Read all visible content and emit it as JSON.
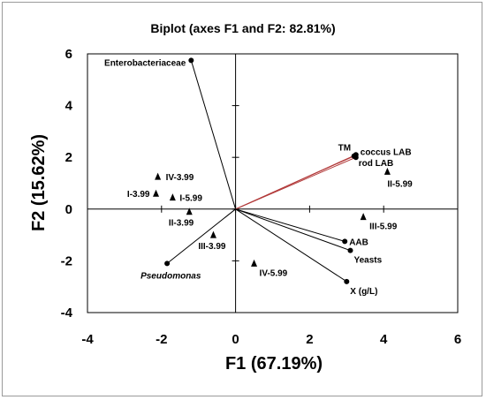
{
  "chart_data": {
    "type": "scatter",
    "title": "Biplot (axes F1 and F2: 82.81%)",
    "xlabel": "F1 (67.19%)",
    "ylabel": "F2 (15.62%)",
    "xlim": [
      -4,
      6
    ],
    "ylim": [
      -4,
      6
    ],
    "xticks": [
      "-4",
      "-2",
      "0",
      "2",
      "4",
      "6"
    ],
    "yticks": [
      "-4",
      "-2",
      "0",
      "2",
      "4",
      "6"
    ],
    "grid": false,
    "series": [
      {
        "kind": "observations",
        "marker": "triangle",
        "points": [
          {
            "label": "IV-3.99",
            "x": -2.1,
            "y": 1.25
          },
          {
            "label": "I-3.99",
            "x": -2.15,
            "y": 0.6
          },
          {
            "label": "I-5.99",
            "x": -1.7,
            "y": 0.45
          },
          {
            "label": "II-3.99",
            "x": -1.25,
            "y": -0.1
          },
          {
            "label": "III-3.99",
            "x": -0.6,
            "y": -1.0
          },
          {
            "label": "IV-5.99",
            "x": 0.5,
            "y": -2.1
          },
          {
            "label": "II-5.99",
            "x": 4.1,
            "y": 1.45
          },
          {
            "label": "III-5.99",
            "x": 3.45,
            "y": -0.3
          }
        ]
      },
      {
        "kind": "variables",
        "marker": "circle",
        "points": [
          {
            "label": "Enterobacteriaceae",
            "x": -1.2,
            "y": 5.75
          },
          {
            "label": "TM",
            "x": 3.2,
            "y": 2.05
          },
          {
            "label": "coccus LAB",
            "x": 3.25,
            "y": 2.1
          },
          {
            "label": "rod LAB",
            "x": 3.25,
            "y": 2.0
          },
          {
            "label": "AAB",
            "x": 2.95,
            "y": -1.25
          },
          {
            "label": "Yeasts",
            "x": 3.1,
            "y": -1.6
          },
          {
            "label": "X (g/L)",
            "x": 3.0,
            "y": -2.8
          },
          {
            "label": "Pseudomonas",
            "x": -1.85,
            "y": -2.1
          }
        ]
      }
    ]
  }
}
